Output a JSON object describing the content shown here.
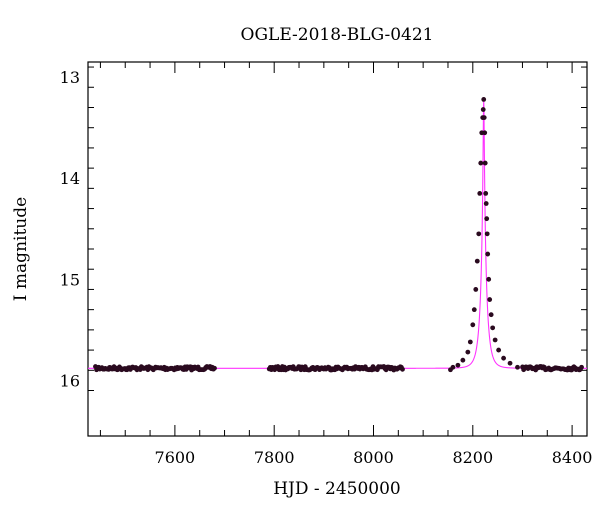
{
  "chart_data": {
    "type": "scatter",
    "title": "OGLE-2018-BLG-0421",
    "xlabel": "HJD - 2450000",
    "ylabel": "I magnitude",
    "xlim": [
      7425,
      8430
    ],
    "ylim": [
      16.55,
      12.85
    ],
    "y_inverted": true,
    "x_ticks": [
      7600,
      7800,
      8000,
      8200,
      8400
    ],
    "y_ticks": [
      13,
      14,
      15,
      16
    ],
    "grid": false,
    "colors": {
      "points": "#2a0a1f",
      "model": "#ff33ff",
      "frame": "#000000"
    },
    "baseline_mag": 15.88,
    "model": {
      "type": "line",
      "t0": 8222,
      "peak_mag": 13.22,
      "base_mag": 15.88,
      "u0": 0.085,
      "tE": 11.5
    },
    "observing_seasons": [
      [
        7440,
        7680
      ],
      [
        7790,
        8060
      ],
      [
        8155,
        8420
      ]
    ],
    "series": [
      {
        "type": "scatter",
        "points": [
          [
            8160,
            15.87
          ],
          [
            8170,
            15.85
          ],
          [
            8180,
            15.8
          ],
          [
            8190,
            15.72
          ],
          [
            8195,
            15.62
          ],
          [
            8200,
            15.45
          ],
          [
            8203,
            15.3
          ],
          [
            8206,
            15.1
          ],
          [
            8209,
            14.82
          ],
          [
            8212,
            14.55
          ],
          [
            8214,
            14.15
          ],
          [
            8216,
            13.85
          ],
          [
            8218,
            13.55
          ],
          [
            8220,
            13.4
          ],
          [
            8221,
            13.32
          ],
          [
            8222,
            13.22
          ],
          [
            8223,
            13.4
          ],
          [
            8224,
            13.55
          ],
          [
            8225,
            13.85
          ],
          [
            8226,
            14.15
          ],
          [
            8227,
            14.25
          ],
          [
            8228,
            14.4
          ],
          [
            8229,
            14.55
          ],
          [
            8230,
            14.75
          ],
          [
            8232,
            15.0
          ],
          [
            8234,
            15.2
          ],
          [
            8237,
            15.35
          ],
          [
            8240,
            15.48
          ],
          [
            8245,
            15.6
          ],
          [
            8252,
            15.7
          ],
          [
            8262,
            15.78
          ],
          [
            8275,
            15.83
          ],
          [
            8290,
            15.87
          ]
        ]
      }
    ]
  }
}
